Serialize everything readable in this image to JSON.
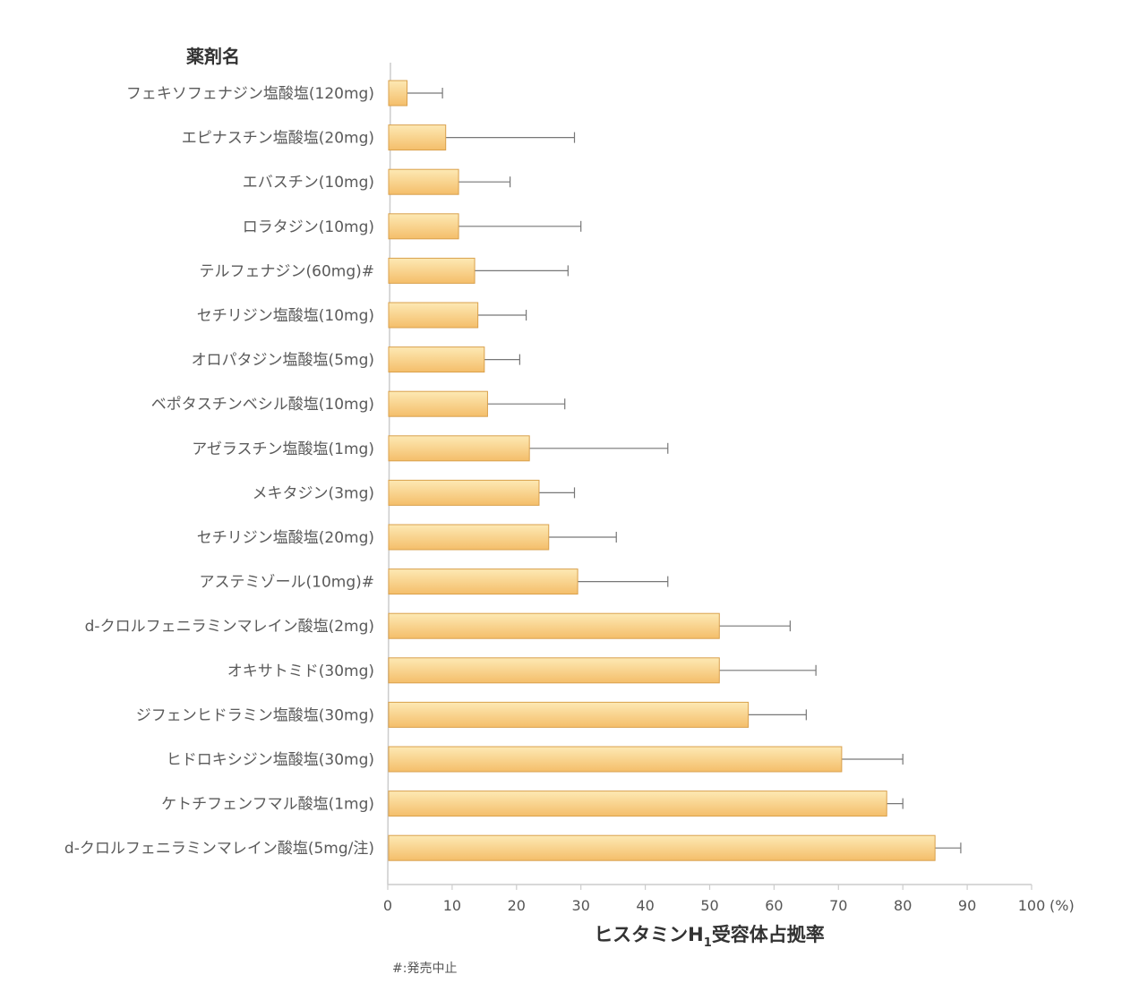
{
  "chart_data": {
    "type": "bar",
    "orientation": "horizontal",
    "ylabel": "薬剤名",
    "xlabel": "ヒスタミンH",
    "xlabel_sub": "1",
    "xlabel_tail": "受容体占拠率",
    "unit": "(%)",
    "xlim": [
      0,
      100
    ],
    "xticks": [
      "0",
      "10",
      "20",
      "30",
      "40",
      "50",
      "60",
      "70",
      "80",
      "90",
      "100"
    ],
    "footnote": "#:発売中止",
    "colors": {
      "bar_top": "#fde9b4",
      "bar_bottom": "#f4be6a",
      "bar_stroke": "#d9a04c",
      "error": "#777777",
      "axis": "#cccccc"
    },
    "categories": [
      "フェキソフェナジン塩酸塩(120mg)",
      "エピナスチン塩酸塩(20mg)",
      "エバスチン(10mg)",
      "ロラタジン(10mg)",
      "テルフェナジン(60mg)#",
      "セチリジン塩酸塩(10mg)",
      "オロパタジン塩酸塩(5mg)",
      "ベポタスチンベシル酸塩(10mg)",
      "アゼラスチン塩酸塩(1mg)",
      "メキタジン(3mg)",
      "セチリジン塩酸塩(20mg)",
      "アステミゾール(10mg)#",
      "d-クロルフェニラミンマレイン酸塩(2mg)",
      "オキサトミド(30mg)",
      "ジフェンヒドラミン塩酸塩(30mg)",
      "ヒドロキシジン塩酸塩(30mg)",
      "ケトチフェンフマル酸塩(1mg)",
      "d-クロルフェニラミンマレイン酸塩(5mg/注)"
    ],
    "values": [
      3,
      9,
      11,
      11,
      13.5,
      14,
      15,
      15.5,
      22,
      23.5,
      25,
      29.5,
      51.5,
      51.5,
      56,
      70.5,
      77.5,
      85
    ],
    "error_upper": [
      8.5,
      29,
      19,
      30,
      28,
      21.5,
      20.5,
      27.5,
      43.5,
      29,
      35.5,
      43.5,
      62.5,
      66.5,
      65,
      80,
      80,
      89
    ]
  }
}
